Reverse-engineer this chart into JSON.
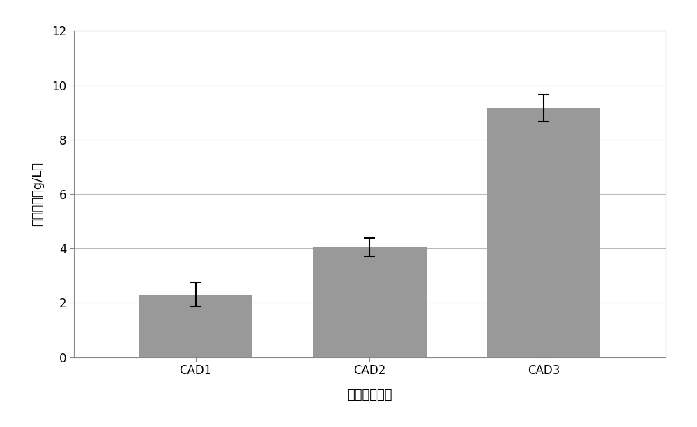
{
  "categories": [
    "CAD1",
    "CAD2",
    "CAD3"
  ],
  "values": [
    2.3,
    4.05,
    9.15
  ],
  "errors": [
    0.45,
    0.35,
    0.5
  ],
  "bar_color": "#999999",
  "bar_width": 0.65,
  "ylim": [
    0,
    12
  ],
  "yticks": [
    0,
    2,
    4,
    6,
    8,
    10,
    12
  ],
  "ylabel": "尸胺产量（g/L）",
  "xlabel": "重组菌株名称",
  "ylabel_fontsize": 13,
  "xlabel_fontsize": 13,
  "tick_fontsize": 12,
  "background_color": "#ffffff",
  "grid_color": "#bbbbbb",
  "figure_facecolor": "#ffffff",
  "spine_color": "#888888"
}
